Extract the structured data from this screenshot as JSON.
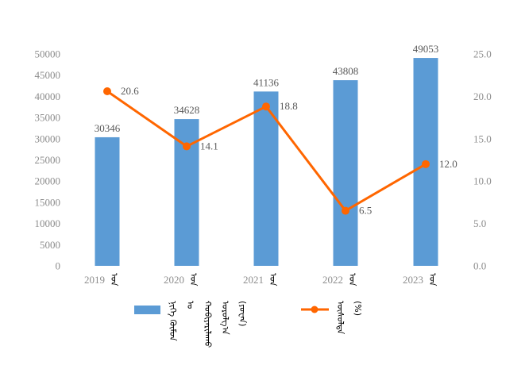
{
  "chart_data": {
    "type": "bar+line",
    "categories": [
      "2019",
      "2020",
      "2021",
      "2022",
      "2023"
    ],
    "category_suffix": "ᠣᠨ",
    "series": [
      {
        "name": "ᠨᠢᠭᠡ ᠬᠦᠮᠦᠨ ᠤ ᠬᠤᠪᠢᠶᠠᠷᠢᠯᠠᠬᠤ ᠣᠷᠣᠯᠭ᠎ᠠ (ᠶᠤᠸᠠᠨ)",
        "type": "bar",
        "axis": "left",
        "color": "#5b9bd5",
        "values": [
          30346,
          34628,
          41136,
          43808,
          49053
        ],
        "labels": [
          "30346",
          "34628",
          "41136",
          "43808",
          "49053"
        ]
      },
      {
        "name": "ᠥᠰᠦᠯᠲᠡ (%)",
        "type": "line",
        "axis": "right",
        "color": "#ff6600",
        "values": [
          20.6,
          14.1,
          18.8,
          6.5,
          12.0
        ],
        "labels": [
          "20.6",
          "14.1",
          "18.8",
          "6.5",
          "12.0"
        ]
      }
    ],
    "left_axis": {
      "ylim": [
        0,
        50000
      ],
      "ticks": [
        "0",
        "5000",
        "10000",
        "15000",
        "20000",
        "25000",
        "30000",
        "35000",
        "40000",
        "45000",
        "50000"
      ]
    },
    "right_axis": {
      "ylim": [
        0,
        25
      ],
      "ticks": [
        "0.0",
        "5.0",
        "10.0",
        "15.0",
        "20.0",
        "25.0"
      ]
    },
    "grid": false,
    "legend_position": "bottom",
    "title": ""
  },
  "legend": {
    "bar_label_lines": [
      "ᠨᠢᠭᠡ ᠬᠦᠮᠦᠨ",
      "ᠤ",
      "ᠬᠤᠪᠢᠶᠠᠷᠢᠯᠠᠬᠤ",
      "ᠣᠷᠣᠯᠭ᠎ᠠ",
      "(ᠶᠤᠸᠠᠨ)"
    ],
    "line_label_lines": [
      "ᠥᠰᠦᠯᠲᠡ",
      "(%)"
    ]
  }
}
